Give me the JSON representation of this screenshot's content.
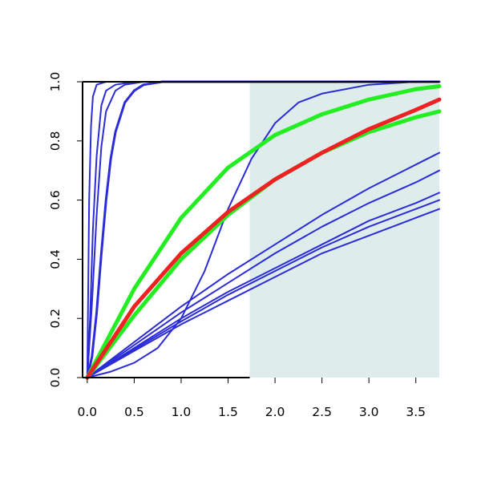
{
  "chart_data": {
    "type": "line",
    "title": "",
    "xlabel": "",
    "ylabel": "",
    "xlim": [
      -0.05,
      3.75
    ],
    "ylim": [
      0,
      1
    ],
    "grid": false,
    "legend": "none",
    "x_ticks": [
      {
        "value": 0.0,
        "label": "0.0"
      },
      {
        "value": 0.5,
        "label": "0.5"
      },
      {
        "value": 1.0,
        "label": "1.0"
      },
      {
        "value": 1.5,
        "label": "1.5"
      },
      {
        "value": 2.0,
        "label": "2.0"
      },
      {
        "value": 2.5,
        "label": "2.5"
      },
      {
        "value": 3.0,
        "label": "3.0"
      },
      {
        "value": 3.5,
        "label": "3.5"
      }
    ],
    "y_ticks": [
      {
        "value": 0.0,
        "label": "0.0"
      },
      {
        "value": 0.2,
        "label": "0.2"
      },
      {
        "value": 0.4,
        "label": "0.4"
      },
      {
        "value": 0.6,
        "label": "0.6"
      },
      {
        "value": 0.8,
        "label": "0.8"
      },
      {
        "value": 1.0,
        "label": "1.0"
      }
    ],
    "shaded_region": {
      "x_from": 1.73,
      "x_to": 3.75,
      "color": "#dfecec"
    },
    "series": [
      {
        "color": "#2b2bd8",
        "width": 2,
        "x": [
          0,
          0.02,
          0.04,
          0.06,
          0.1,
          0.2,
          0.5,
          1.0,
          3.75
        ],
        "y": [
          0,
          0.6,
          0.85,
          0.95,
          0.99,
          1.0,
          1.0,
          1.0,
          1.0
        ]
      },
      {
        "color": "#2b2bd8",
        "width": 2,
        "x": [
          0,
          0.03,
          0.06,
          0.1,
          0.15,
          0.2,
          0.3,
          0.5,
          1.0,
          3.75
        ],
        "y": [
          0,
          0.2,
          0.5,
          0.75,
          0.92,
          0.97,
          0.99,
          1.0,
          1.0,
          1.0
        ]
      },
      {
        "color": "#2b2bd8",
        "width": 2,
        "x": [
          0,
          0.05,
          0.1,
          0.15,
          0.2,
          0.3,
          0.4,
          0.6,
          1.0,
          3.75
        ],
        "y": [
          0,
          0.25,
          0.55,
          0.78,
          0.9,
          0.97,
          0.99,
          1.0,
          1.0,
          1.0
        ]
      },
      {
        "color": "#2b2bd8",
        "width": 3,
        "x": [
          0,
          0.05,
          0.1,
          0.15,
          0.2,
          0.25,
          0.3,
          0.4,
          0.5,
          0.6,
          0.8,
          1.0,
          3.75
        ],
        "y": [
          0,
          0.07,
          0.22,
          0.42,
          0.6,
          0.74,
          0.83,
          0.93,
          0.97,
          0.99,
          1.0,
          1.0,
          1.0
        ]
      },
      {
        "color": "#2b2bd8",
        "width": 2,
        "x": [
          0,
          0.25,
          0.5,
          0.75,
          1.0,
          1.25,
          1.5,
          1.75,
          2.0,
          2.25,
          2.5,
          3.0,
          3.5,
          3.75
        ],
        "y": [
          0,
          0.02,
          0.05,
          0.1,
          0.2,
          0.36,
          0.57,
          0.74,
          0.86,
          0.93,
          0.96,
          0.99,
          1.0,
          1.0
        ]
      },
      {
        "color": "#2b2bd8",
        "width": 2,
        "x": [
          0,
          0.5,
          1.0,
          1.5,
          2.0,
          2.5,
          3.0,
          3.5,
          3.75
        ],
        "y": [
          0,
          0.12,
          0.24,
          0.35,
          0.45,
          0.55,
          0.64,
          0.72,
          0.76
        ]
      },
      {
        "color": "#2b2bd8",
        "width": 2,
        "x": [
          0,
          0.5,
          1.0,
          1.5,
          2.0,
          2.5,
          3.0,
          3.5,
          3.75
        ],
        "y": [
          0,
          0.11,
          0.22,
          0.32,
          0.42,
          0.51,
          0.59,
          0.66,
          0.7
        ]
      },
      {
        "color": "#2b2bd8",
        "width": 2,
        "x": [
          0,
          0.5,
          1.0,
          1.5,
          2.0,
          2.5,
          3.0,
          3.5,
          3.75
        ],
        "y": [
          0,
          0.1,
          0.2,
          0.29,
          0.37,
          0.45,
          0.53,
          0.59,
          0.625
        ]
      },
      {
        "color": "#2b2bd8",
        "width": 2,
        "x": [
          0,
          0.5,
          1.0,
          1.5,
          2.0,
          2.5,
          3.0,
          3.5,
          3.75
        ],
        "y": [
          0,
          0.095,
          0.19,
          0.28,
          0.36,
          0.44,
          0.51,
          0.57,
          0.6
        ]
      },
      {
        "color": "#2b2bd8",
        "width": 2,
        "x": [
          0,
          0.5,
          1.0,
          1.5,
          2.0,
          2.5,
          3.0,
          3.5,
          3.75
        ],
        "y": [
          0,
          0.09,
          0.18,
          0.26,
          0.34,
          0.42,
          0.48,
          0.54,
          0.57
        ]
      },
      {
        "color": "#22ee22",
        "width": 5,
        "x": [
          0,
          0.5,
          1.0,
          1.5,
          2.0,
          2.5,
          3.0,
          3.5,
          3.75
        ],
        "y": [
          0,
          0.21,
          0.4,
          0.55,
          0.67,
          0.76,
          0.83,
          0.88,
          0.9
        ]
      },
      {
        "color": "#22ee22",
        "width": 5,
        "x": [
          0,
          0.5,
          1.0,
          1.5,
          2.0,
          2.5,
          3.0,
          3.5,
          3.75
        ],
        "y": [
          0,
          0.3,
          0.54,
          0.71,
          0.82,
          0.89,
          0.94,
          0.975,
          0.985
        ]
      },
      {
        "color": "#ee2222",
        "width": 5,
        "x": [
          0,
          0.5,
          1.0,
          1.5,
          2.0,
          2.5,
          3.0,
          3.5,
          3.75
        ],
        "y": [
          0,
          0.24,
          0.42,
          0.56,
          0.67,
          0.76,
          0.84,
          0.905,
          0.94
        ]
      }
    ]
  }
}
